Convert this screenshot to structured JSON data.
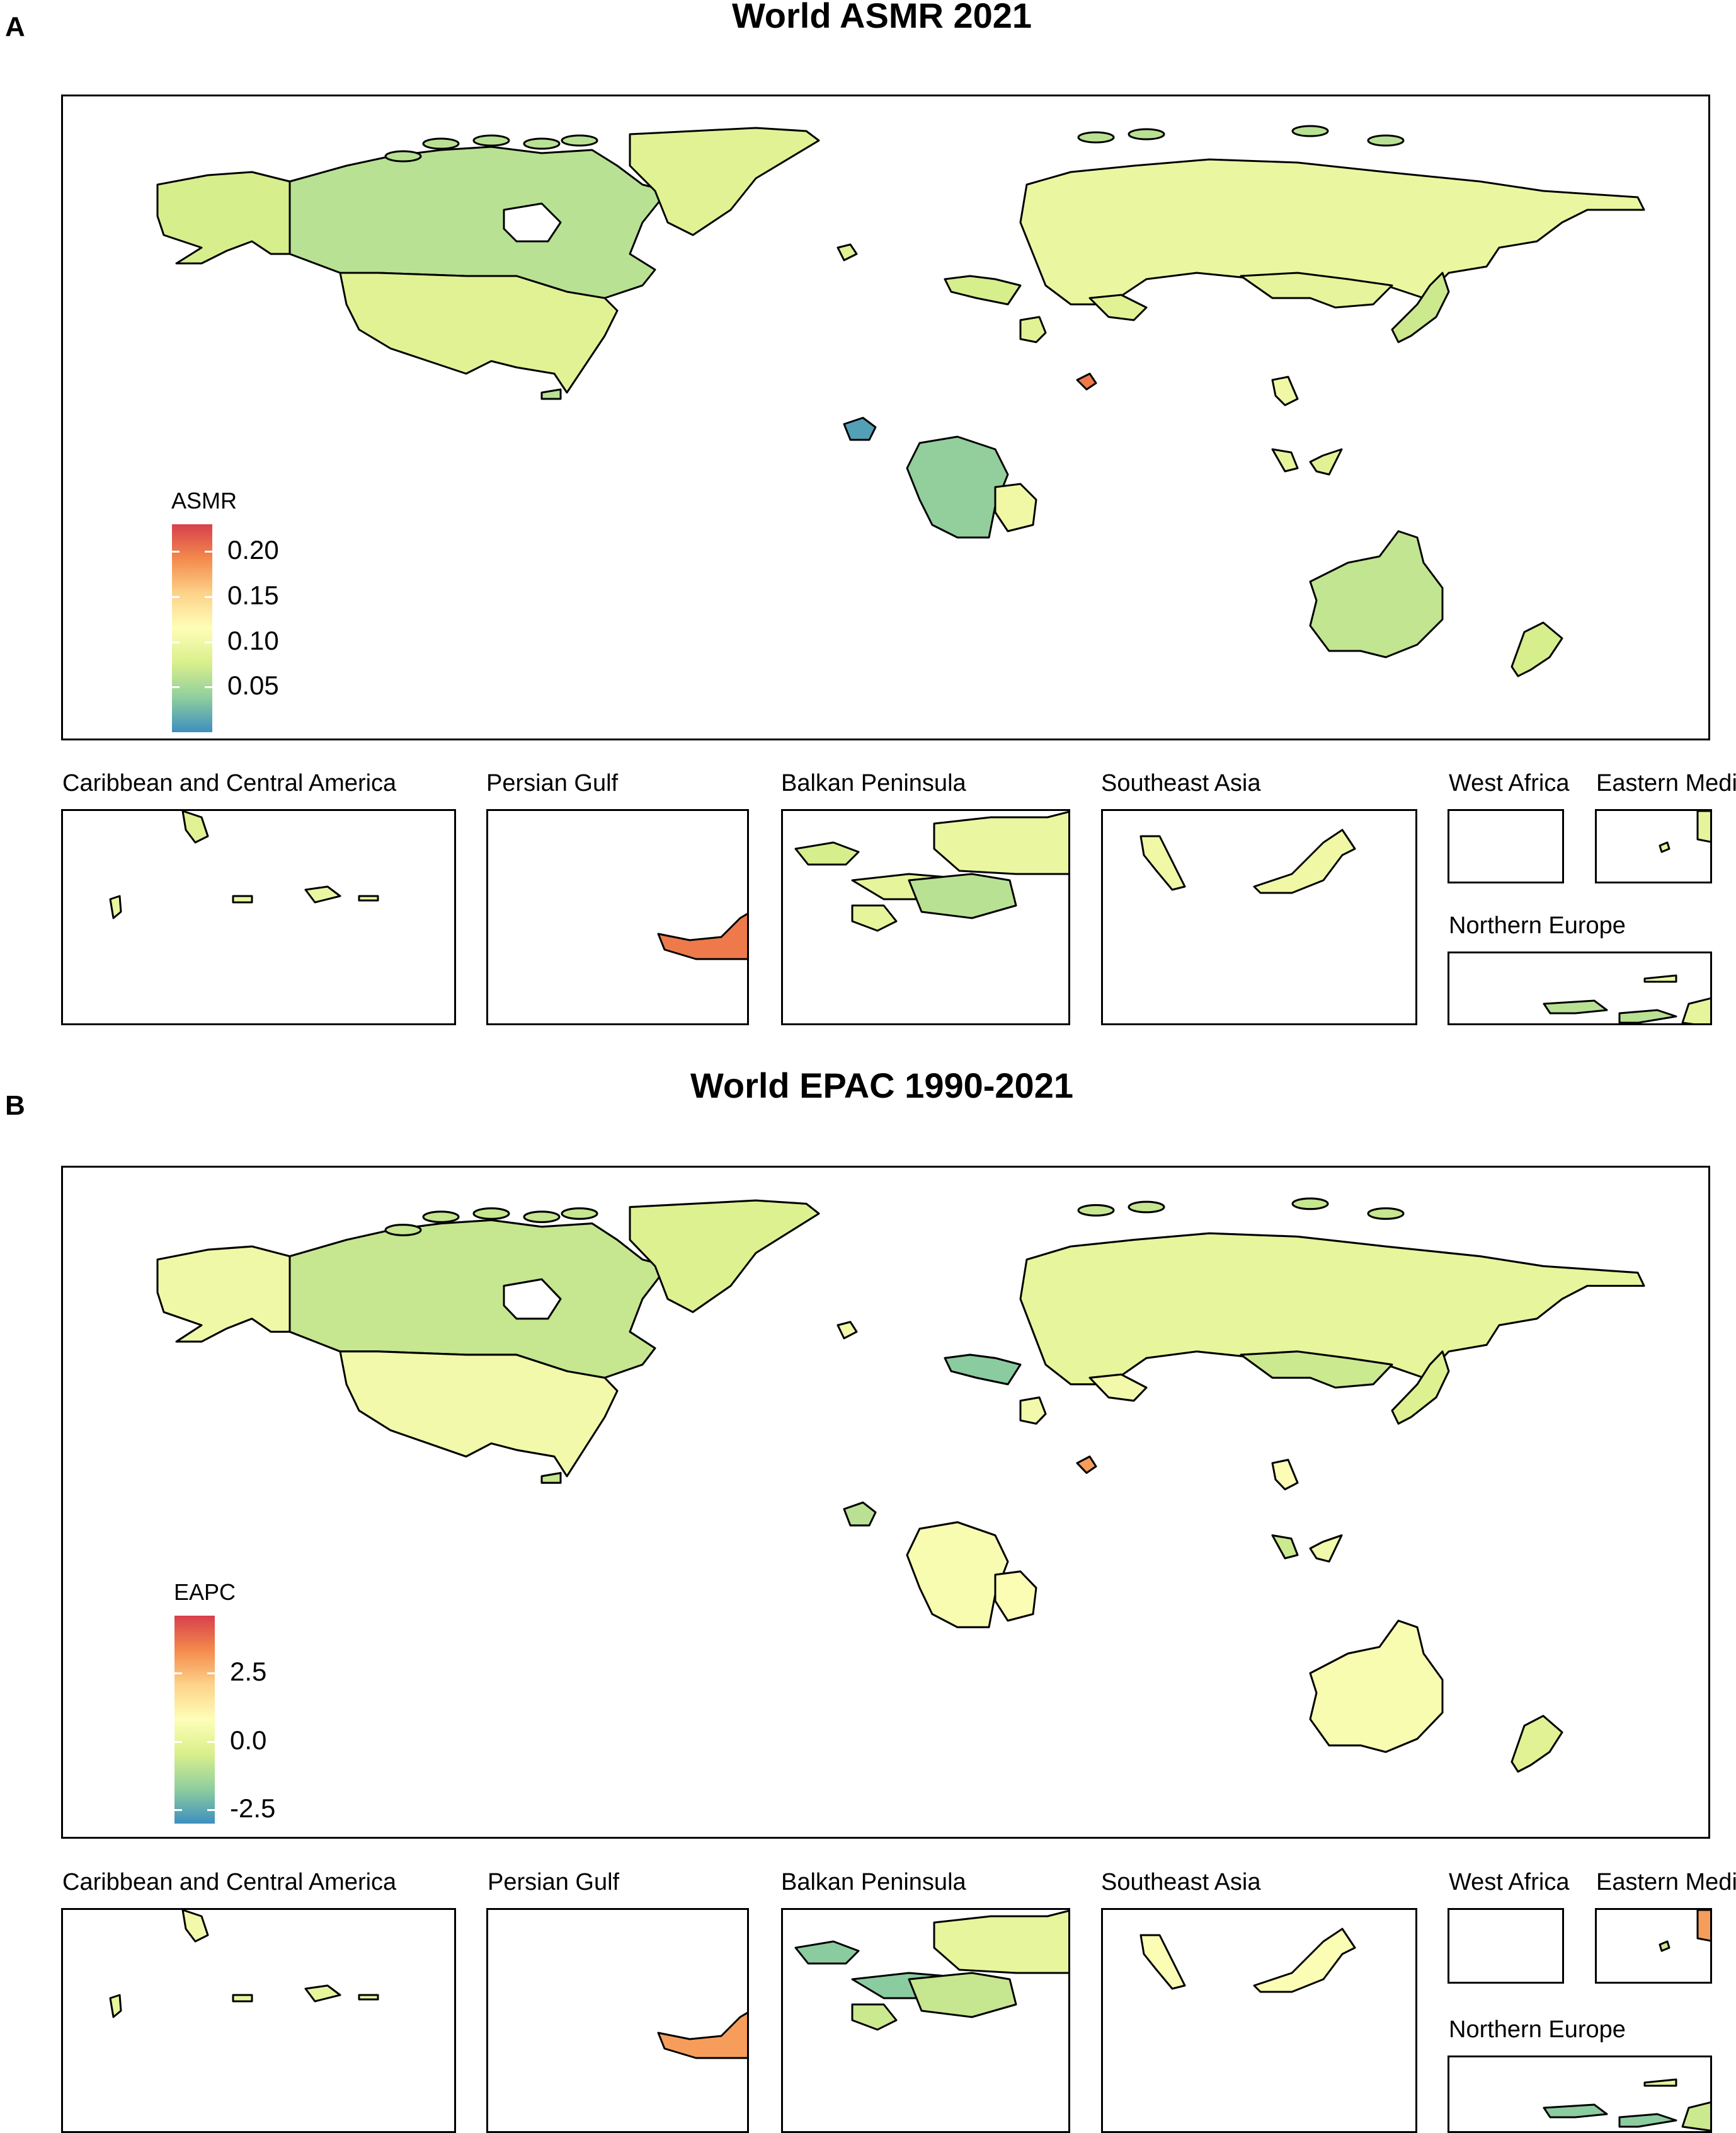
{
  "panels": [
    {
      "letter": "A",
      "title": "World ASMR 2021",
      "legend": {
        "title": "ASMR",
        "ticks": [
          "0.20",
          "0.15",
          "0.10",
          "0.05"
        ],
        "tick_values": [
          0.2,
          0.15,
          0.1,
          0.05
        ],
        "range": [
          0.0,
          0.23
        ],
        "colors": [
          "#d7404c",
          "#f48a4c",
          "#fdd38a",
          "#fefeb8",
          "#d9ef8b",
          "#8fce9e",
          "#3e8fbf"
        ]
      },
      "region_values": {
        "canada": 0.06,
        "usa": 0.085,
        "alaska": 0.075,
        "greenland": 0.085,
        "russia": 0.095,
        "mongolia": 0.09,
        "australia": 0.065,
        "new_zealand": 0.075,
        "africa_block": 0.04,
        "madagascar": 0.1,
        "arabia_island": 0.01,
        "persian_gulf": 0.2,
        "europe_w": 0.075,
        "japan": 0.07
      },
      "insets": [
        {
          "title": "Caribbean and Central America"
        },
        {
          "title": "Persian Gulf"
        },
        {
          "title": "Balkan Peninsula"
        },
        {
          "title": "Southeast Asia"
        },
        {
          "title": "West Africa"
        },
        {
          "title": "Eastern Medi"
        },
        {
          "title": "Northern Europe"
        }
      ]
    },
    {
      "letter": "B",
      "title": "World EPAC 1990-2021",
      "legend": {
        "title": "EAPC",
        "ticks": [
          "2.5",
          "0.0",
          "-2.5"
        ],
        "tick_values": [
          2.5,
          0.0,
          -2.5
        ],
        "range": [
          -3.0,
          4.6
        ],
        "colors": [
          "#d7404c",
          "#f48a4c",
          "#fdd38a",
          "#fefeb8",
          "#d9ef8b",
          "#8fce9e",
          "#3e8fbf"
        ]
      },
      "region_values": {
        "canada": -0.8,
        "usa": 0.4,
        "alaska": 0.3,
        "greenland": -0.3,
        "russia": 0.0,
        "mongolia": -0.7,
        "australia": 0.6,
        "new_zealand": -0.2,
        "africa_block": 0.6,
        "madagascar": 0.7,
        "arabia_island": -1.0,
        "persian_gulf": 3.0,
        "europe_w": -1.8,
        "japan": -0.3
      },
      "insets": [
        {
          "title": "Caribbean and Central America"
        },
        {
          "title": "Persian Gulf"
        },
        {
          "title": "Balkan Peninsula"
        },
        {
          "title": "Southeast Asia"
        },
        {
          "title": "West Africa"
        },
        {
          "title": "Eastern Medi"
        },
        {
          "title": "Northern Europe"
        }
      ]
    }
  ]
}
